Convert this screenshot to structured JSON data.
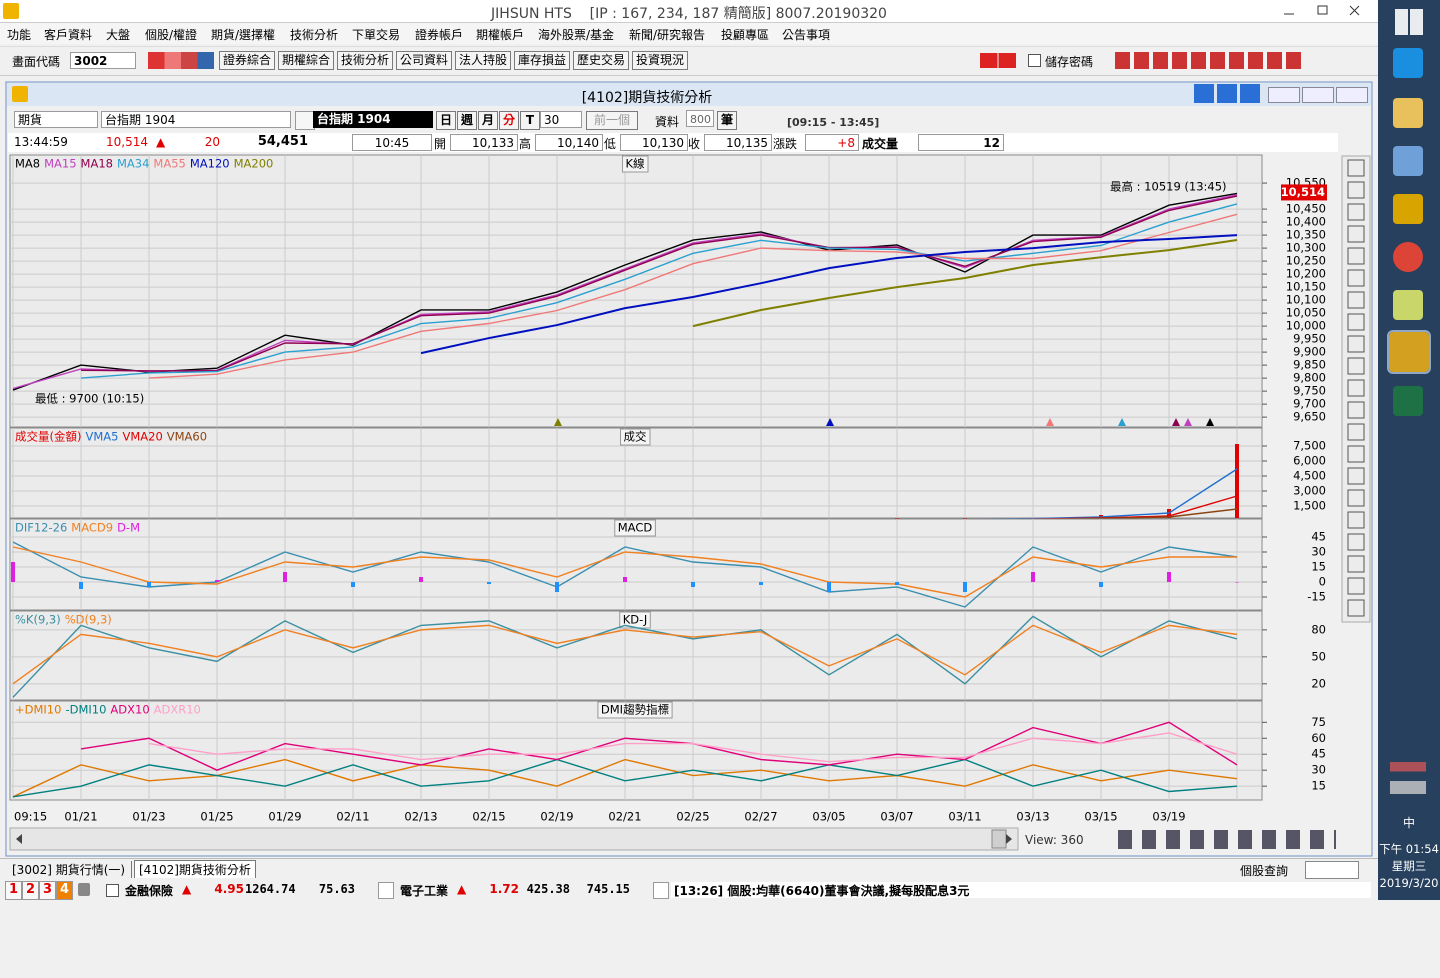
{
  "window": {
    "title": "JIHSUN HTS    [IP : 167, 234, 187 精簡版] 8007.20190320"
  },
  "menu": [
    "功能",
    "客戶資料",
    "大盤",
    "個股/權證",
    "期貨/選擇權",
    "技術分析",
    "下單交易",
    "證券帳戶",
    "期權帳戶",
    "海外股票/基金",
    "新聞/研究報告",
    "投顧專區",
    "公告事項"
  ],
  "toolbar": {
    "code_label": "畫面代碼",
    "code": "3002",
    "buttons": [
      "證券綜合",
      "期權綜合",
      "技術分析",
      "公司資料",
      "法人持股",
      "庫存損益",
      "歷史交易",
      "投資現況"
    ],
    "save_password": "儲存密碼"
  },
  "chart_window": {
    "title": "[4102]期貨技術分析",
    "market": "期貨",
    "symbol": "台指期 1904",
    "symbol_display": "台指期 1904",
    "periods": [
      "日",
      "週",
      "月",
      "分",
      "T"
    ],
    "interval": "30",
    "prev": "前一個",
    "data_label": "資料",
    "data_count": "800",
    "data_unit": "筆",
    "session": "[09:15 - 13:45]"
  },
  "quote": {
    "time": "13:44:59",
    "price": "10,514",
    "up_mark": "▲",
    "change": "20",
    "volume": "54,451",
    "bar_time": "10:45",
    "open_label": "開",
    "open": "10,133",
    "high_label": "高",
    "high": "10,140",
    "low_label": "低",
    "low": "10,130",
    "close_label": "收",
    "close": "10,135",
    "chg_label": "漲跌",
    "chg": "+8",
    "vol_label": "成交量",
    "vol": "12"
  },
  "chart_data": [
    {
      "type": "line",
      "title": "K線",
      "grid": true,
      "ylim": [
        9612,
        10658
      ],
      "yticks": [
        {
          "value": 10550,
          "label": "10,550"
        },
        {
          "value": 10450,
          "label": "10,450"
        },
        {
          "value": 10400,
          "label": "10,400"
        },
        {
          "value": 10350,
          "label": "10,350"
        },
        {
          "value": 10300,
          "label": "10,300"
        },
        {
          "value": 10250,
          "label": "10,250"
        },
        {
          "value": 10200,
          "label": "10,200"
        },
        {
          "value": 10150,
          "label": "10,150"
        },
        {
          "value": 10100,
          "label": "10,100"
        },
        {
          "value": 10050,
          "label": "10,050"
        },
        {
          "value": 10000,
          "label": "10,000"
        },
        {
          "value": 9950,
          "label": "9,950"
        },
        {
          "value": 9900,
          "label": "9,900"
        },
        {
          "value": 9850,
          "label": "9,850"
        },
        {
          "value": 9800,
          "label": "9,800"
        },
        {
          "value": 9750,
          "label": "9,750"
        },
        {
          "value": 9700,
          "label": "9,700"
        },
        {
          "value": 9650,
          "label": "9,650"
        }
      ],
      "last_price": {
        "value": 10514,
        "label": "10,514"
      },
      "annotations": [
        "最高 : 10519 (13:45)",
        "最低 : 9700 (10:15)"
      ],
      "series": [
        {
          "name": "MA8",
          "color": "#000000",
          "values": [
            9754,
            9850,
            9823,
            9838,
            9965,
            9927,
            10062,
            10062,
            10131,
            10235,
            10331,
            10362,
            10292,
            10312,
            10208,
            10350,
            10350,
            10465,
            10510
          ]
        },
        {
          "name": "MA15",
          "color": "#c040c0",
          "values": [
            9760,
            9835,
            9826,
            9830,
            9945,
            9930,
            10045,
            10055,
            10120,
            10220,
            10320,
            10355,
            10300,
            10305,
            10225,
            10330,
            10345,
            10450,
            10505
          ]
        },
        {
          "name": "MA18",
          "color": "#900050",
          "values": [
            null,
            9830,
            9828,
            9828,
            9935,
            9932,
            10040,
            10050,
            10115,
            10215,
            10315,
            10350,
            10302,
            10303,
            10230,
            10325,
            10342,
            10445,
            10500
          ]
        },
        {
          "name": "MA34",
          "color": "#2aa0d0",
          "values": [
            null,
            9800,
            9820,
            9825,
            9900,
            9920,
            10010,
            10030,
            10090,
            10180,
            10280,
            10330,
            10300,
            10295,
            10250,
            10280,
            10310,
            10400,
            10470
          ]
        },
        {
          "name": "MA55",
          "color": "#f07878",
          "values": [
            null,
            null,
            9800,
            9815,
            9870,
            9900,
            9980,
            10010,
            10060,
            10140,
            10240,
            10300,
            10290,
            10285,
            10260,
            10260,
            10290,
            10360,
            10430
          ]
        },
        {
          "name": "MA120",
          "color": "#0010c0",
          "values": [
            null,
            null,
            null,
            null,
            null,
            null,
            9896,
            9954,
            10004,
            10069,
            10112,
            10165,
            10223,
            10262,
            10285,
            10300,
            10323,
            10335,
            10350
          ]
        },
        {
          "name": "MA200",
          "color": "#808000",
          "values": [
            null,
            null,
            null,
            null,
            null,
            null,
            null,
            null,
            null,
            null,
            10000,
            10062,
            10108,
            10150,
            10185,
            10235,
            10265,
            10292,
            10331
          ]
        }
      ]
    },
    {
      "type": "bar",
      "title": "成交",
      "grid": true,
      "ylim": [
        300,
        9300
      ],
      "yticks": [
        {
          "value": 7500,
          "label": "7,500"
        },
        {
          "value": 6000,
          "label": "6,000"
        },
        {
          "value": 4500,
          "label": "4,500"
        },
        {
          "value": 3000,
          "label": "3,000"
        },
        {
          "value": 1500,
          "label": "1,500"
        }
      ],
      "series": [
        {
          "name": "成交量(金額)",
          "type": "bar",
          "color": "#e00000",
          "values": [
            null,
            null,
            null,
            null,
            null,
            null,
            null,
            null,
            null,
            null,
            null,
            null,
            null,
            150,
            200,
            300,
            600,
            1200,
            7700
          ]
        },
        {
          "name": "VMA5",
          "color": "#1e6fd0",
          "values": [
            null,
            null,
            null,
            null,
            null,
            null,
            null,
            null,
            null,
            null,
            null,
            null,
            null,
            120,
            170,
            240,
            400,
            800,
            5200
          ]
        },
        {
          "name": "VMA20",
          "color": "#e00000",
          "values": [
            null,
            null,
            null,
            null,
            null,
            null,
            null,
            null,
            null,
            null,
            null,
            null,
            null,
            100,
            140,
            190,
            300,
            500,
            2500
          ]
        },
        {
          "name": "VMA60",
          "color": "#8b4513",
          "values": [
            null,
            null,
            null,
            null,
            null,
            null,
            null,
            null,
            null,
            null,
            null,
            null,
            null,
            90,
            120,
            160,
            250,
            400,
            1200
          ]
        }
      ]
    },
    {
      "type": "line",
      "title": "MACD",
      "grid": true,
      "ylim": [
        -28,
        63
      ],
      "yticks": [
        45,
        30,
        15,
        0,
        -15
      ],
      "series": [
        {
          "name": "DIF12-26",
          "color": "#3a8fb0",
          "values": [
            40,
            5,
            -5,
            0,
            30,
            10,
            30,
            20,
            -5,
            35,
            20,
            15,
            -10,
            -5,
            -25,
            35,
            10,
            35,
            25
          ]
        },
        {
          "name": "MACD9",
          "color": "#f08020",
          "values": [
            35,
            20,
            0,
            -2,
            20,
            15,
            25,
            22,
            5,
            30,
            25,
            18,
            0,
            -2,
            -15,
            25,
            15,
            25,
            25
          ]
        },
        {
          "name": "D-M",
          "type": "bar",
          "color": "#e020e0",
          "neg_color": "#2090ff",
          "values": [
            20,
            -7,
            -5,
            2,
            10,
            -5,
            5,
            -2,
            -10,
            5,
            -5,
            -3,
            -10,
            -3,
            -10,
            10,
            -5,
            10,
            0
          ]
        }
      ]
    },
    {
      "type": "line",
      "title": "KD-J",
      "grid": true,
      "ylim": [
        2,
        101
      ],
      "yticks": [
        80,
        50,
        20
      ],
      "series": [
        {
          "name": "%K(9,3)",
          "color": "#3a8fa0",
          "values": [
            5,
            85,
            60,
            45,
            90,
            55,
            85,
            90,
            60,
            85,
            70,
            80,
            30,
            75,
            20,
            95,
            50,
            90,
            70
          ]
        },
        {
          "name": "%D(9,3)",
          "color": "#f08020",
          "values": [
            20,
            75,
            65,
            50,
            80,
            60,
            80,
            85,
            65,
            80,
            72,
            78,
            40,
            70,
            30,
            85,
            55,
            85,
            75
          ]
        }
      ]
    },
    {
      "type": "line",
      "title": "DMI趨勢指標",
      "grid": true,
      "ylim": [
        2,
        95
      ],
      "yticks": [
        75,
        60,
        45,
        30,
        15
      ],
      "categories": [
        "09:15",
        "01/21",
        "01/23",
        "01/25",
        "01/29",
        "02/11",
        "02/13",
        "02/15",
        "02/19",
        "02/21",
        "02/25",
        "02/27",
        "03/05",
        "03/07",
        "03/11",
        "03/13",
        "03/15",
        "03/19",
        null
      ],
      "series": [
        {
          "name": "+DMI10",
          "color": "#e07800",
          "values": [
            5,
            35,
            20,
            25,
            40,
            20,
            35,
            30,
            15,
            40,
            25,
            30,
            20,
            25,
            15,
            35,
            20,
            30,
            22
          ]
        },
        {
          "name": "-DMI10",
          "color": "#008080",
          "values": [
            5,
            15,
            35,
            25,
            15,
            35,
            15,
            20,
            40,
            20,
            30,
            20,
            35,
            25,
            40,
            15,
            30,
            10,
            15
          ]
        },
        {
          "name": "ADX10",
          "color": "#e0007a",
          "values": [
            null,
            50,
            60,
            30,
            55,
            45,
            35,
            50,
            40,
            60,
            55,
            40,
            35,
            45,
            40,
            70,
            55,
            75,
            35
          ]
        },
        {
          "name": "ADXR10",
          "color": "#ffa0c8",
          "values": [
            null,
            null,
            55,
            45,
            50,
            50,
            40,
            45,
            45,
            55,
            55,
            45,
            38,
            42,
            42,
            60,
            55,
            65,
            45
          ]
        }
      ]
    }
  ],
  "scroll": {
    "view": "View: 360"
  },
  "tabs": [
    "[3002] 期貨行情(一)",
    "[4102]期貨技術分析"
  ],
  "stock_query": "個股查詢",
  "status": {
    "pages": [
      "1",
      "2",
      "3",
      "4"
    ],
    "sectors": [
      {
        "name": "金融保險",
        "mark": "▲",
        "change": "4.95",
        "index": "1264.74",
        "amount": "75.63"
      },
      {
        "name": "電子工業",
        "mark": "▲",
        "change": "1.72",
        "index": "425.38",
        "amount": "745.15"
      }
    ],
    "news": "[13:26] 個股:均華(6640)董事會決議,擬每股配息3元"
  },
  "taskbar": {
    "ime": "中",
    "time": "下午 01:54",
    "weekday": "星期三",
    "date": "2019/3/20"
  }
}
